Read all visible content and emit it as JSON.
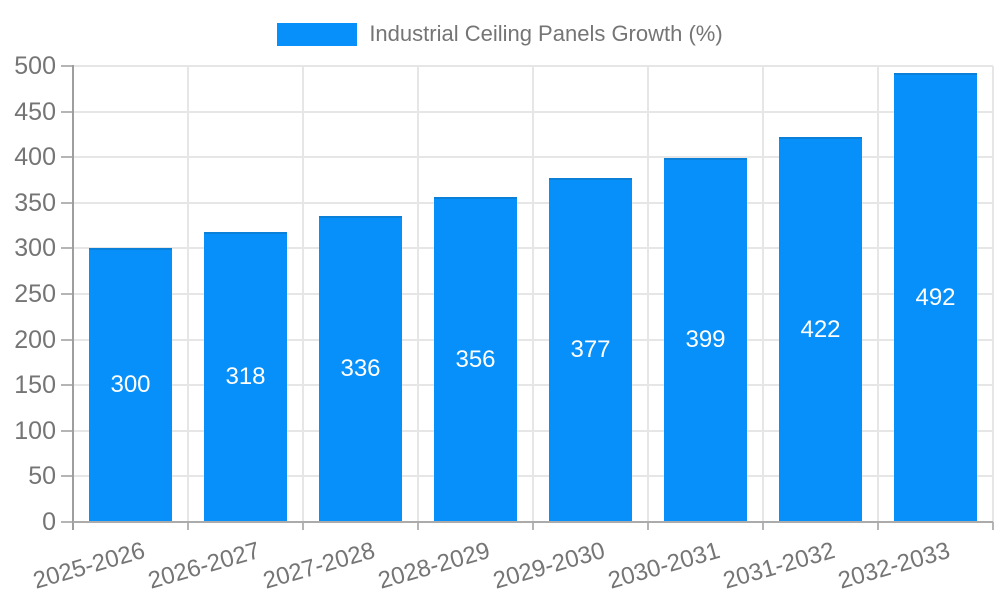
{
  "legend": {
    "label": "Industrial Ceiling Panels Growth (%)"
  },
  "chart_data": {
    "type": "bar",
    "title": "Industrial Ceiling Panels Growth (%)",
    "categories": [
      "2025-2026",
      "2026-2027",
      "2027-2028",
      "2028-2029",
      "2029-2030",
      "2030-2031",
      "2031-2032",
      "2032-2033"
    ],
    "series": [
      {
        "name": "Industrial Ceiling Panels Growth (%)",
        "values": [
          300,
          318,
          336,
          356,
          377,
          399,
          422,
          492
        ]
      }
    ],
    "xlabel": "",
    "ylabel": "",
    "ylim": [
      0,
      500
    ],
    "ytick_step": 50,
    "grid": true,
    "legend_position": "top",
    "value_label_position": "inside-center",
    "colors": {
      "bar": "#0890fa",
      "bar_top_edge": "#0b80d8",
      "gridline": "#e6e6e6",
      "axis_line": "#9e9e9e",
      "baseline": "#ababab",
      "tick": "#b5b5b5",
      "axis_label": "#757575",
      "value_label": "#ffffff",
      "background": "#ffffff"
    }
  }
}
